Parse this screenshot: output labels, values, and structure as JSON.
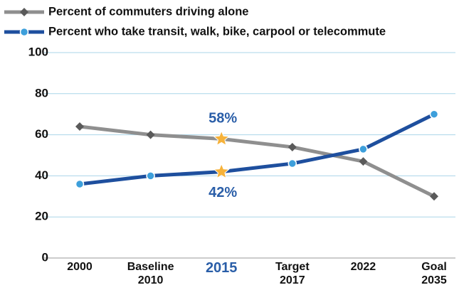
{
  "chart_data": {
    "type": "line",
    "categories": [
      "2000",
      "Baseline\n2010",
      "2015",
      "Target\n2017",
      "2022",
      "Goal\n2035"
    ],
    "series": [
      {
        "name": "Percent of commuters driving alone",
        "color": "#8f8f8f",
        "marker_color": "#5a5a5a",
        "marker": "diamond",
        "values": [
          64,
          60,
          58,
          54,
          47,
          30
        ],
        "value_labels": [
          null,
          null,
          "58%",
          null,
          null,
          null
        ]
      },
      {
        "name": "Percent who take transit, walk, bike, carpool or telecommute",
        "color": "#1e4f9e",
        "marker_color": "#3d9fdb",
        "marker": "circle",
        "values": [
          36,
          40,
          42,
          46,
          53,
          70
        ],
        "value_labels": [
          null,
          null,
          "42%",
          null,
          null,
          null
        ]
      }
    ],
    "highlight_index": 2,
    "highlight_color": "#2a5ea8",
    "star_color": "#f6b23a",
    "ylim": [
      0,
      100
    ],
    "yticks": [
      0,
      20,
      40,
      60,
      80,
      100
    ],
    "grid": true,
    "legend": "top-left"
  }
}
